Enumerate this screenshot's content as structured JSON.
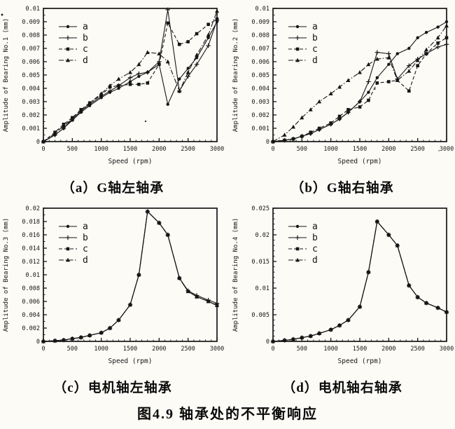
{
  "page": {
    "background": "#fcfbf6",
    "ink": "#161616"
  },
  "figure_title": "图4.9 轴承处的不平衡响应",
  "captions": [
    "（a）G轴左轴承",
    "（b）G轴右轴承",
    "（c）电机轴左轴承",
    "（d）电机轴右轴承"
  ],
  "chart_data": [
    {
      "type": "line",
      "xlabel": "Speed (rpm)",
      "ylabel": "Amplitude of Bearing No.1 (mm)",
      "xlim": [
        0,
        3000
      ],
      "ylim": [
        0,
        0.01
      ],
      "xtick_values": [
        0,
        500,
        1000,
        1500,
        2000,
        2500,
        3000
      ],
      "xtick_labels": [
        "0",
        "500",
        "1000",
        "1500",
        "2000",
        "2500",
        "3000"
      ],
      "ytick_values": [
        0,
        0.001,
        0.002,
        0.003,
        0.004,
        0.005,
        0.006,
        0.007,
        0.008,
        0.009,
        0.01
      ],
      "ytick_labels": [
        "0",
        "0.001",
        "0.002",
        "0.003",
        "0.004",
        "0.005",
        "0.006",
        "0.007",
        "0.008",
        "0.009",
        "0.01"
      ],
      "xminor_step": 100,
      "yminor_step": 0.0005,
      "grid": false,
      "legend_position": "upper-left",
      "legend": [
        "a",
        "b",
        "c",
        "d"
      ],
      "x": [
        0,
        200,
        350,
        500,
        650,
        800,
        1000,
        1150,
        1300,
        1500,
        1650,
        1800,
        2000,
        2150,
        2350,
        2500,
        2650,
        2850,
        3000
      ],
      "series": [
        {
          "name": "a",
          "marker": "circle",
          "line": "solid",
          "values": [
            0,
            0.0005,
            0.001,
            0.0016,
            0.0022,
            0.0027,
            0.0033,
            0.0037,
            0.004,
            0.0045,
            0.0049,
            0.0052,
            0.0058,
            0.0028,
            0.0047,
            0.0055,
            0.0063,
            0.0078,
            0.009
          ]
        },
        {
          "name": "b",
          "marker": "plus",
          "line": "solid",
          "values": [
            0,
            0.0005,
            0.001,
            0.0017,
            0.0023,
            0.0028,
            0.0034,
            0.0038,
            0.0042,
            0.0048,
            0.0051,
            0.0052,
            0.006,
            0.0099,
            0.0038,
            0.0049,
            0.0058,
            0.0072,
            0.0091
          ]
        },
        {
          "name": "c",
          "marker": "square",
          "line": "dashed",
          "values": [
            0,
            0.0007,
            0.0013,
            0.0018,
            0.0024,
            0.0029,
            0.0035,
            0.0041,
            0.0042,
            0.0043,
            0.0043,
            0.0044,
            0.0058,
            0.0089,
            0.0073,
            0.0075,
            0.0081,
            0.0088,
            0.0092
          ]
        },
        {
          "name": "d",
          "marker": "triangle",
          "line": "dashdot",
          "values": [
            0,
            0.0006,
            0.0012,
            0.0017,
            0.0023,
            0.0029,
            0.0036,
            0.0042,
            0.0047,
            0.0052,
            0.0058,
            0.0067,
            0.0066,
            0.006,
            0.0038,
            0.0052,
            0.0065,
            0.008,
            0.0098
          ]
        }
      ]
    },
    {
      "type": "line",
      "xlabel": "Speed (rpm)",
      "ylabel": "Amplitude of Bearing No.2 (mm)",
      "xlim": [
        0,
        3000
      ],
      "ylim": [
        0,
        0.01
      ],
      "xtick_values": [
        0,
        500,
        1000,
        1500,
        2000,
        2500,
        3000
      ],
      "xtick_labels": [
        "0",
        "500",
        "1000",
        "1500",
        "2000",
        "2500",
        "3000"
      ],
      "ytick_values": [
        0,
        0.001,
        0.002,
        0.003,
        0.004,
        0.005,
        0.006,
        0.007,
        0.008,
        0.009,
        0.01
      ],
      "ytick_labels": [
        "0",
        "0.001",
        "0.002",
        "0.003",
        "0.004",
        "0.005",
        "0.006",
        "0.007",
        "0.008",
        "0.009",
        "0.01"
      ],
      "xminor_step": 100,
      "yminor_step": 0.0005,
      "grid": false,
      "legend_position": "upper-left",
      "legend": [
        "a",
        "b",
        "c",
        "d"
      ],
      "x": [
        0,
        200,
        350,
        500,
        650,
        800,
        1000,
        1150,
        1300,
        1500,
        1650,
        1800,
        2000,
        2150,
        2350,
        2500,
        2650,
        2850,
        3000
      ],
      "series": [
        {
          "name": "a",
          "marker": "circle",
          "line": "solid",
          "values": [
            0,
            0.0001,
            0.0002,
            0.0004,
            0.0006,
            0.0009,
            0.0013,
            0.0017,
            0.0022,
            0.003,
            0.0037,
            0.0048,
            0.0058,
            0.0066,
            0.007,
            0.0078,
            0.0082,
            0.0086,
            0.009
          ]
        },
        {
          "name": "b",
          "marker": "plus",
          "line": "solid",
          "values": [
            0,
            0.0001,
            0.0002,
            0.0004,
            0.0006,
            0.0009,
            0.0013,
            0.0017,
            0.0022,
            0.003,
            0.0045,
            0.0067,
            0.0066,
            0.0047,
            0.0057,
            0.0062,
            0.0066,
            0.0071,
            0.0073
          ]
        },
        {
          "name": "c",
          "marker": "square",
          "line": "dashed",
          "values": [
            0,
            0.0001,
            0.0002,
            0.0004,
            0.0007,
            0.001,
            0.0014,
            0.0019,
            0.0024,
            0.0026,
            0.0031,
            0.0044,
            0.0045,
            0.0046,
            0.0038,
            0.0057,
            0.0066,
            0.0074,
            0.0078
          ]
        },
        {
          "name": "d",
          "marker": "triangle",
          "line": "dashdot",
          "values": [
            0,
            0.0005,
            0.0011,
            0.0018,
            0.0024,
            0.003,
            0.0036,
            0.0041,
            0.0046,
            0.0052,
            0.0058,
            0.0062,
            0.0063,
            0.0046,
            0.0053,
            0.0061,
            0.0069,
            0.0078,
            0.0087
          ]
        }
      ]
    },
    {
      "type": "line",
      "xlabel": "Speed (rpm)",
      "ylabel": "Amplitude of Bearing No.3 (mm)",
      "xlim": [
        0,
        3000
      ],
      "ylim": [
        0,
        0.02
      ],
      "xtick_values": [
        0,
        500,
        1000,
        1500,
        2000,
        2500,
        3000
      ],
      "xtick_labels": [
        "0",
        "500",
        "1000",
        "1500",
        "2000",
        "2500",
        "3000"
      ],
      "ytick_values": [
        0,
        0.002,
        0.004,
        0.006,
        0.008,
        0.01,
        0.012,
        0.014,
        0.016,
        0.018,
        0.02
      ],
      "ytick_labels": [
        "0",
        "0.002",
        "0.004",
        "0.006",
        "0.008",
        "0.01",
        "0.012",
        "0.014",
        "0.016",
        "0.018",
        "0.02"
      ],
      "xminor_step": 100,
      "yminor_step": 0.001,
      "grid": false,
      "legend_position": "upper-left",
      "legend": [
        "a",
        "b",
        "c",
        "d"
      ],
      "x": [
        0,
        200,
        350,
        500,
        650,
        800,
        1000,
        1150,
        1300,
        1500,
        1650,
        1800,
        2000,
        2150,
        2350,
        2500,
        2650,
        2850,
        3000
      ],
      "series": [
        {
          "name": "a",
          "marker": "circle",
          "line": "solid",
          "values": [
            0,
            0.0001,
            0.0002,
            0.0004,
            0.0006,
            0.0009,
            0.0013,
            0.002,
            0.0032,
            0.0055,
            0.01,
            0.0195,
            0.0178,
            0.016,
            0.0095,
            0.0075,
            0.0067,
            0.006,
            0.0054
          ]
        },
        {
          "name": "b",
          "marker": "plus",
          "line": "solid",
          "values": [
            0,
            0.0001,
            0.0002,
            0.0004,
            0.0006,
            0.0009,
            0.0013,
            0.002,
            0.0032,
            0.0055,
            0.01,
            0.0195,
            0.0178,
            0.016,
            0.0095,
            0.0076,
            0.0069,
            0.0062,
            0.0057
          ]
        },
        {
          "name": "c",
          "marker": "square",
          "line": "dashed",
          "values": [
            0,
            0.0001,
            0.0002,
            0.0004,
            0.0006,
            0.0009,
            0.0013,
            0.002,
            0.0032,
            0.0055,
            0.01,
            0.0195,
            0.0178,
            0.016,
            0.0095,
            0.0075,
            0.0067,
            0.006,
            0.0054
          ]
        },
        {
          "name": "d",
          "marker": "triangle",
          "line": "dashdot",
          "values": [
            0,
            0.0001,
            0.0002,
            0.0004,
            0.0006,
            0.0009,
            0.0013,
            0.002,
            0.0032,
            0.0055,
            0.01,
            0.0195,
            0.0178,
            0.016,
            0.0095,
            0.0075,
            0.0067,
            0.006,
            0.0054
          ]
        }
      ]
    },
    {
      "type": "line",
      "xlabel": "Speed (rpm)",
      "ylabel": "Amplitude of Bearing No.4 (mm)",
      "xlim": [
        0,
        3000
      ],
      "ylim": [
        0,
        0.025
      ],
      "xtick_values": [
        0,
        500,
        1000,
        1500,
        2000,
        2500,
        3000
      ],
      "xtick_labels": [
        "0",
        "500",
        "1000",
        "1500",
        "2000",
        "2500",
        "3000"
      ],
      "ytick_values": [
        0,
        0.005,
        0.01,
        0.015,
        0.02,
        0.025
      ],
      "ytick_labels": [
        "0",
        "0.005",
        "0.01",
        "0.015",
        "0.02",
        "0.025"
      ],
      "xminor_step": 100,
      "yminor_step": 0.001,
      "grid": false,
      "legend_position": "upper-left",
      "legend": [
        "a",
        "b",
        "c",
        "d"
      ],
      "x": [
        0,
        200,
        350,
        500,
        650,
        800,
        1000,
        1150,
        1300,
        1500,
        1650,
        1800,
        2000,
        2150,
        2350,
        2500,
        2650,
        2850,
        3000
      ],
      "series": [
        {
          "name": "a",
          "marker": "circle",
          "line": "solid",
          "values": [
            0,
            0.0002,
            0.0004,
            0.0007,
            0.001,
            0.0015,
            0.0022,
            0.003,
            0.004,
            0.0065,
            0.013,
            0.0225,
            0.02,
            0.018,
            0.0105,
            0.0083,
            0.0072,
            0.0063,
            0.0055
          ]
        },
        {
          "name": "b",
          "marker": "plus",
          "line": "solid",
          "values": [
            0,
            0.0002,
            0.0004,
            0.0007,
            0.001,
            0.0015,
            0.0022,
            0.003,
            0.004,
            0.0065,
            0.013,
            0.0225,
            0.02,
            0.018,
            0.0105,
            0.0083,
            0.0072,
            0.0063,
            0.0055
          ]
        },
        {
          "name": "c",
          "marker": "square",
          "line": "dashed",
          "values": [
            0,
            0.0002,
            0.0004,
            0.0007,
            0.001,
            0.0015,
            0.0022,
            0.003,
            0.004,
            0.0065,
            0.013,
            0.0225,
            0.02,
            0.018,
            0.0105,
            0.0083,
            0.0072,
            0.0063,
            0.0055
          ]
        },
        {
          "name": "d",
          "marker": "triangle",
          "line": "dashdot",
          "values": [
            0,
            0.0002,
            0.0004,
            0.0007,
            0.001,
            0.0015,
            0.0022,
            0.003,
            0.004,
            0.0065,
            0.013,
            0.0225,
            0.02,
            0.018,
            0.0105,
            0.0083,
            0.0072,
            0.0063,
            0.0055
          ]
        }
      ]
    }
  ]
}
